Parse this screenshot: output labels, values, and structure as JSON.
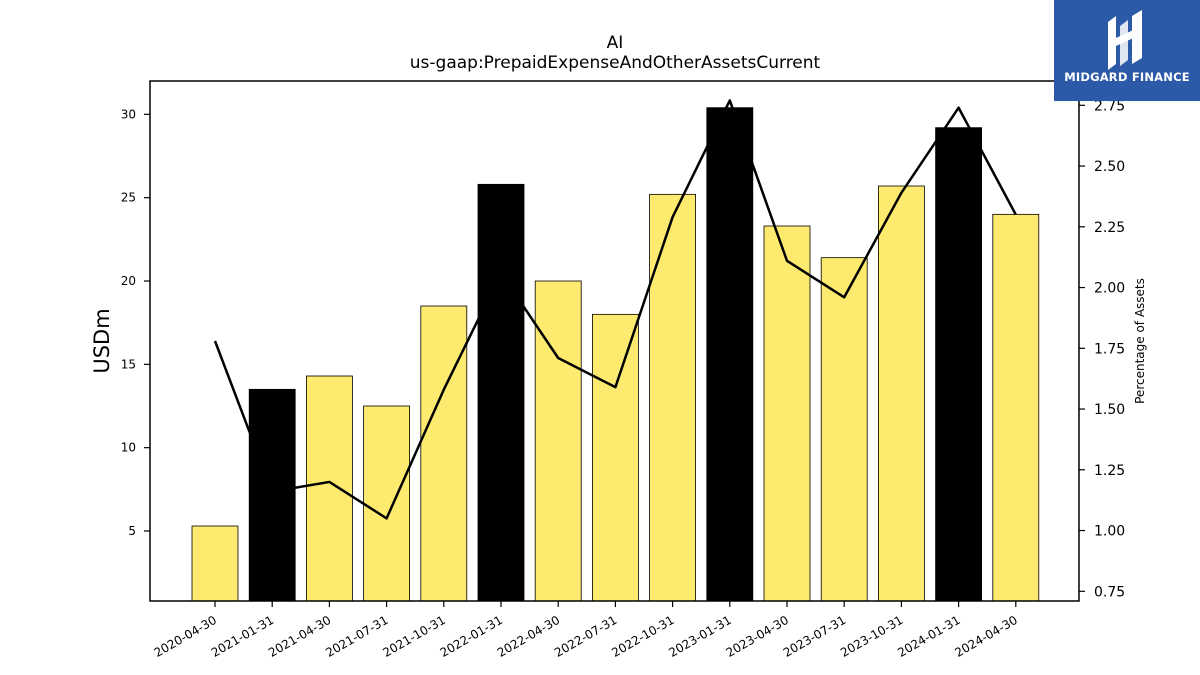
{
  "chart_data": {
    "type": "bar",
    "title": "AI",
    "subtitle": "us-gaap:PrepaidExpenseAndOtherAssetsCurrent",
    "ylabel": "USDm",
    "y2label": "Percentage of Assets",
    "categories": [
      "2020-04-30",
      "2021-01-31",
      "2021-04-30",
      "2021-07-31",
      "2021-10-31",
      "2022-01-31",
      "2022-04-30",
      "2022-07-31",
      "2022-10-31",
      "2023-01-31",
      "2023-04-30",
      "2023-07-31",
      "2023-10-31",
      "2024-01-31",
      "2024-04-30"
    ],
    "series": [
      {
        "values": [
          5.3,
          13.5,
          14.3,
          12.5,
          18.5,
          25.8,
          20.0,
          18.0,
          25.2,
          30.4,
          23.3,
          21.4,
          25.7,
          29.2,
          24.0
        ]
      },
      {
        "axis": "right",
        "values": [
          1.78,
          1.16,
          1.2,
          1.05,
          1.58,
          2.06,
          1.71,
          1.59,
          2.29,
          2.77,
          2.11,
          1.96,
          2.39,
          2.74,
          2.3
        ]
      }
    ],
    "highlighted_categories": [
      "2021-01-31",
      "2022-01-31",
      "2023-01-31",
      "2024-01-31"
    ],
    "ylim": [
      0.8,
      32
    ],
    "y2lim": [
      0.71,
      2.85
    ],
    "yticks": [
      5,
      10,
      15,
      20,
      25,
      30
    ],
    "y2ticks": [
      "0.75",
      "1.00",
      "1.25",
      "1.50",
      "1.75",
      "2.00",
      "2.25",
      "2.50",
      "2.75"
    ],
    "grid": false,
    "colors": {
      "bar": "#fdea6f",
      "highlight": "#000000",
      "line": "#000000",
      "edge": "#000000"
    }
  },
  "logo": {
    "text": "MIDGARD FINANCE",
    "background": "#2c5aa8"
  }
}
